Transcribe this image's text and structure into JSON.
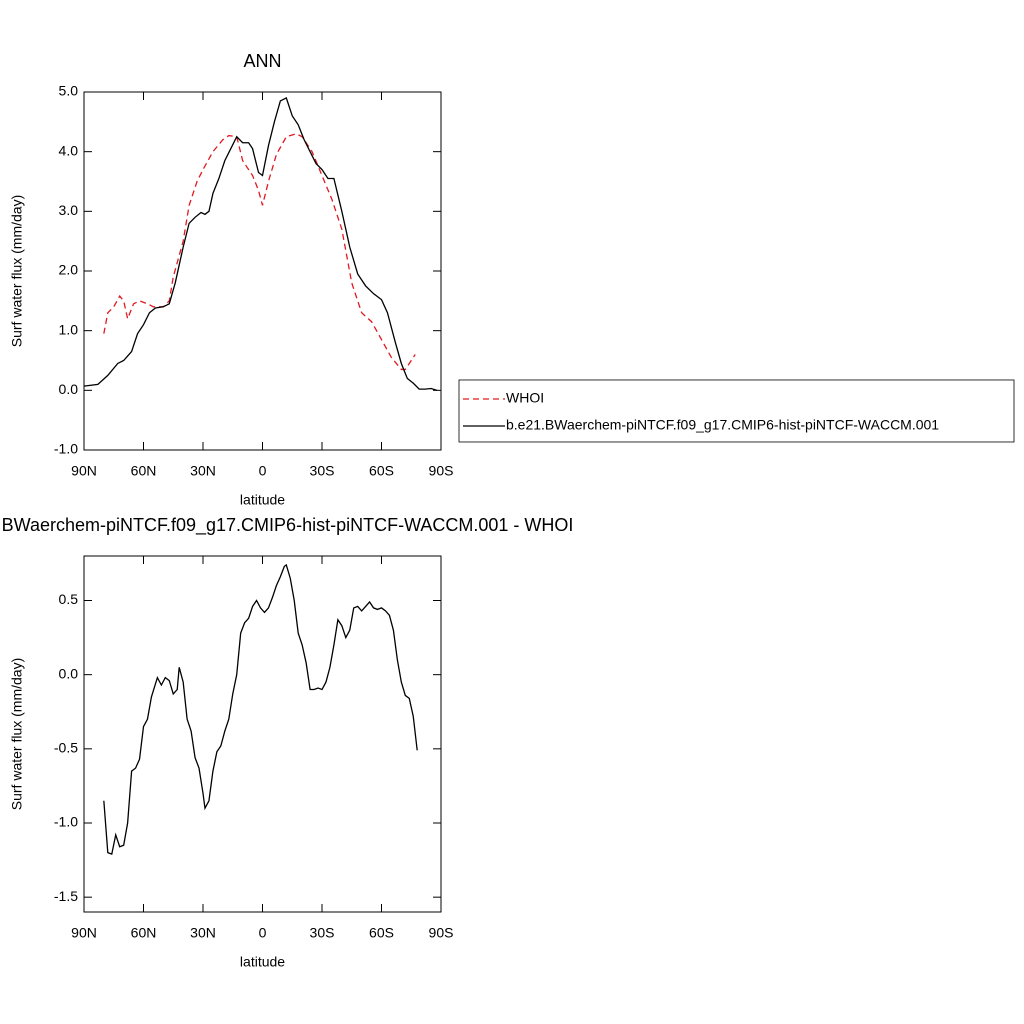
{
  "chart_data": [
    {
      "type": "line",
      "title": "ANN",
      "xlabel": "latitude",
      "ylabel": "Surf water flux (mm/day)",
      "xlim": [
        90,
        -90
      ],
      "xticks": [
        {
          "value": 90,
          "label": "90N"
        },
        {
          "value": 60,
          "label": "60N"
        },
        {
          "value": 30,
          "label": "30N"
        },
        0,
        {
          "value": -30,
          "label": "30S"
        },
        {
          "value": -60,
          "label": "60S"
        },
        {
          "value": -90,
          "label": "90S"
        }
      ],
      "ylim": [
        -1,
        5
      ],
      "yticks": [
        {
          "value": 5,
          "label": "5.0"
        },
        {
          "value": 4,
          "label": "4.0"
        },
        {
          "value": 3,
          "label": "3.0"
        },
        {
          "value": 2,
          "label": "2.0"
        },
        {
          "value": 1,
          "label": "1.0"
        },
        {
          "value": 0,
          "label": "0.0"
        },
        {
          "value": -1,
          "label": "-1.0"
        }
      ],
      "legend": "right",
      "series": [
        {
          "name": "WHOI",
          "color": "#e0191f",
          "linestyle": "dashed",
          "x": [
            80,
            78,
            75,
            72,
            70,
            68,
            65,
            62,
            58,
            55,
            50,
            47,
            45,
            40,
            37,
            33,
            30,
            25,
            20,
            17,
            13,
            10,
            5,
            2,
            0,
            -3,
            -7,
            -12,
            -17,
            -20,
            -25,
            -30,
            -35,
            -40,
            -45,
            -50,
            -55,
            -60,
            -65,
            -70,
            -72,
            -75,
            -77
          ],
          "values": [
            0.95,
            1.3,
            1.4,
            1.58,
            1.5,
            1.2,
            1.45,
            1.5,
            1.45,
            1.4,
            1.4,
            1.5,
            1.9,
            2.5,
            3.1,
            3.5,
            3.7,
            4.0,
            4.2,
            4.27,
            4.25,
            3.85,
            3.6,
            3.35,
            3.1,
            3.5,
            3.95,
            4.25,
            4.3,
            4.25,
            4.0,
            3.6,
            3.2,
            2.7,
            1.8,
            1.3,
            1.15,
            0.85,
            0.55,
            0.35,
            0.35,
            0.5,
            0.6
          ]
        },
        {
          "name": "b.e21.BWaerchem-piNTCF.f09_g17.CMIP6-hist-piNTCF-WACCM.001",
          "color": "#000000",
          "linestyle": "solid",
          "x": [
            90,
            83,
            78,
            73,
            70,
            66,
            63,
            60,
            57,
            54,
            50,
            47,
            44,
            40,
            37,
            34,
            31,
            29,
            27,
            25,
            22,
            19,
            16,
            13,
            10,
            7,
            5,
            2,
            0,
            -3,
            -6,
            -9,
            -12,
            -15,
            -18,
            -21,
            -24,
            -27,
            -30,
            -33,
            -36,
            -40,
            -44,
            -48,
            -52,
            -56,
            -60,
            -63,
            -67,
            -70,
            -73,
            -76,
            -79,
            -82,
            -85,
            -88
          ],
          "values": [
            0.07,
            0.1,
            0.25,
            0.45,
            0.5,
            0.65,
            0.95,
            1.1,
            1.3,
            1.38,
            1.4,
            1.45,
            1.8,
            2.4,
            2.8,
            2.9,
            2.98,
            2.95,
            3.0,
            3.3,
            3.55,
            3.85,
            4.05,
            4.25,
            4.15,
            4.15,
            4.05,
            3.65,
            3.6,
            4.1,
            4.5,
            4.85,
            4.9,
            4.6,
            4.45,
            4.2,
            4.0,
            3.8,
            3.7,
            3.55,
            3.55,
            3.0,
            2.4,
            1.95,
            1.75,
            1.62,
            1.52,
            1.3,
            0.8,
            0.45,
            0.2,
            0.12,
            0.02,
            0.02,
            0.03,
            0.0
          ]
        }
      ]
    },
    {
      "type": "line",
      "title": "b.e21.BWaerchem-piNTCF.f09_g17.CMIP6-hist-piNTCF-WACCM.001 - WHOI",
      "xlabel": "latitude",
      "ylabel": "Surf water flux (mm/day)",
      "xlim": [
        90,
        -90
      ],
      "xticks": [
        {
          "value": 90,
          "label": "90N"
        },
        {
          "value": 60,
          "label": "60N"
        },
        {
          "value": 30,
          "label": "30N"
        },
        0,
        {
          "value": -30,
          "label": "30S"
        },
        {
          "value": -60,
          "label": "60S"
        },
        {
          "value": -90,
          "label": "90S"
        }
      ],
      "ylim": [
        -1.6,
        0.8
      ],
      "yticks": [
        0.5,
        {
          "value": 0,
          "label": "0.0"
        },
        -0.5,
        {
          "value": -1,
          "label": "-1.0"
        },
        -1.5
      ],
      "series": [
        {
          "color": "#000000",
          "linestyle": "solid",
          "x": [
            80,
            78,
            76,
            74,
            72,
            70,
            68,
            66,
            64,
            62,
            60,
            58,
            56,
            53,
            51,
            49,
            47,
            45,
            43,
            42,
            40,
            38,
            36,
            34,
            32,
            30,
            29,
            27,
            25,
            23,
            21,
            19,
            17,
            15,
            13,
            11,
            9,
            7,
            5,
            3,
            1,
            -1,
            -3,
            -5,
            -7,
            -9,
            -11,
            -12,
            -14,
            -16,
            -18,
            -20,
            -22,
            -24,
            -26,
            -28,
            -30,
            -32,
            -34,
            -36,
            -38,
            -40,
            -42,
            -44,
            -46,
            -48,
            -50,
            -52,
            -54,
            -56,
            -58,
            -60,
            -62,
            -64,
            -66,
            -68,
            -70,
            -72,
            -74,
            -76,
            -78
          ],
          "values": [
            -0.85,
            -1.2,
            -1.21,
            -1.08,
            -1.16,
            -1.15,
            -1.0,
            -0.65,
            -0.63,
            -0.57,
            -0.35,
            -0.3,
            -0.15,
            -0.02,
            -0.07,
            -0.02,
            -0.04,
            -0.13,
            -0.1,
            0.05,
            -0.05,
            -0.3,
            -0.38,
            -0.56,
            -0.63,
            -0.8,
            -0.9,
            -0.85,
            -0.65,
            -0.52,
            -0.48,
            -0.38,
            -0.3,
            -0.13,
            0.0,
            0.28,
            0.35,
            0.38,
            0.46,
            0.5,
            0.45,
            0.42,
            0.45,
            0.52,
            0.6,
            0.66,
            0.73,
            0.74,
            0.65,
            0.5,
            0.28,
            0.2,
            0.08,
            -0.1,
            -0.1,
            -0.09,
            -0.1,
            -0.05,
            0.05,
            0.2,
            0.37,
            0.33,
            0.25,
            0.3,
            0.45,
            0.46,
            0.43,
            0.46,
            0.49,
            0.45,
            0.44,
            0.45,
            0.43,
            0.4,
            0.3,
            0.1,
            -0.05,
            -0.14,
            -0.16,
            -0.28,
            -0.51
          ]
        }
      ]
    }
  ]
}
